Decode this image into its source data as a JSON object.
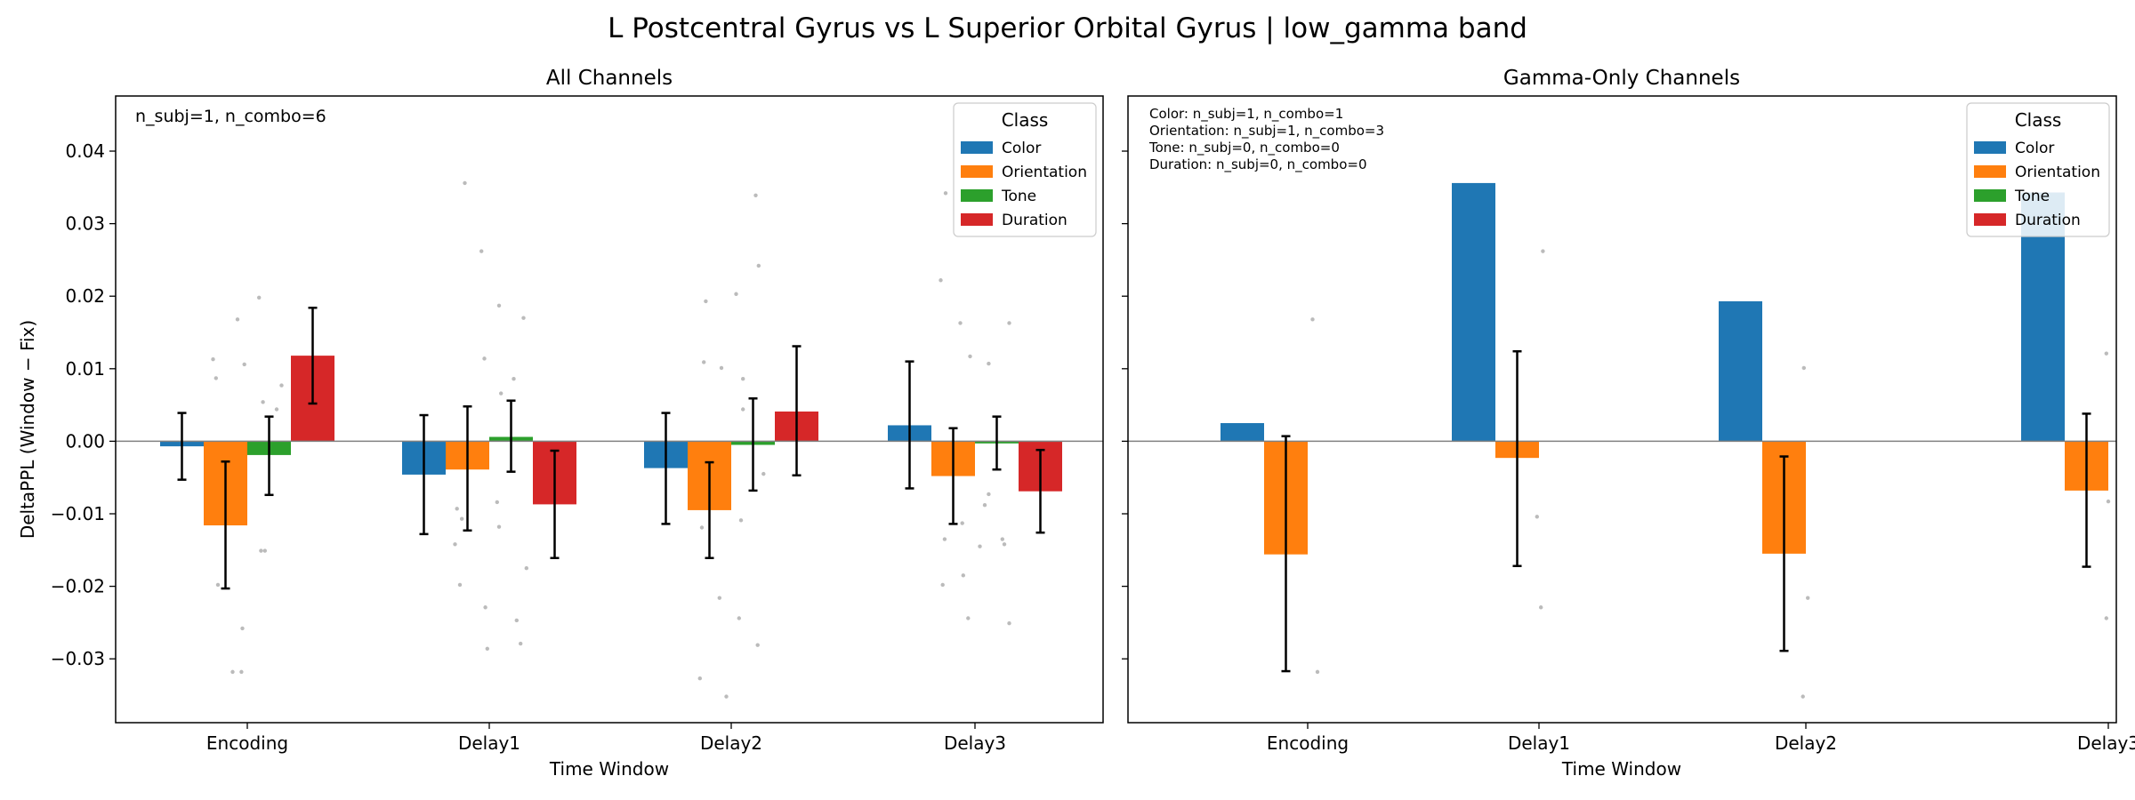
{
  "suptitle": "L Postcentral Gyrus vs L Superior Orbital Gyrus  |  low_gamma band",
  "legend_title": "Class",
  "colors": {
    "Color": "#1f77b4",
    "Orientation": "#ff7f0e",
    "Tone": "#2ca02c",
    "Duration": "#d62728",
    "errorbar": "#000000",
    "points": "#bbbbbb",
    "zeroline": "#808080"
  },
  "chart_data": [
    {
      "type": "bar",
      "title": "All Channels",
      "xlabel": "Time Window",
      "ylabel": "DeltaPPL (Window − Fix)",
      "ylim": [
        -0.0388,
        0.0476
      ],
      "yticks": [
        -0.03,
        -0.02,
        -0.01,
        0.0,
        0.01,
        0.02,
        0.03,
        0.04
      ],
      "ytick_labels": [
        "−0.03",
        "−0.02",
        "−0.01",
        "0.00",
        "0.01",
        "0.02",
        "0.03",
        "0.04"
      ],
      "categories": [
        "Encoding",
        "Delay1",
        "Delay2",
        "Delay3"
      ],
      "legend": [
        "Color",
        "Orientation",
        "Tone",
        "Duration"
      ],
      "legend_position": "upper right",
      "annotation": [
        "n_subj=1, n_combo=6"
      ],
      "series": [
        {
          "name": "Color",
          "values": [
            -0.0007,
            -0.0046,
            -0.0037,
            0.0022
          ],
          "err_low": [
            -0.0053,
            -0.0128,
            -0.0114,
            -0.0065
          ],
          "err_high": [
            0.0039,
            0.0036,
            0.0039,
            0.011
          ]
        },
        {
          "name": "Orientation",
          "values": [
            -0.0116,
            -0.0039,
            -0.0095,
            -0.0048
          ],
          "err_low": [
            -0.0203,
            -0.0123,
            -0.0161,
            -0.0114
          ],
          "err_high": [
            -0.0028,
            0.0048,
            -0.0029,
            0.0018
          ]
        },
        {
          "name": "Tone",
          "values": [
            -0.0019,
            0.0006,
            -0.0005,
            -0.0003
          ],
          "err_low": [
            -0.0074,
            -0.0042,
            -0.0068,
            -0.0039
          ],
          "err_high": [
            0.0034,
            0.0056,
            0.0059,
            0.0034
          ]
        },
        {
          "name": "Duration",
          "values": [
            0.0118,
            -0.0087,
            0.0041,
            -0.0069
          ],
          "err_low": [
            0.0052,
            -0.0161,
            -0.0047,
            -0.0126
          ],
          "err_high": [
            0.0184,
            -0.0013,
            0.0131,
            -0.0012
          ]
        }
      ],
      "points": [
        {
          "cat": 0,
          "off": -0.35,
          "y": 0.0113
        },
        {
          "cat": 0,
          "off": -0.32,
          "y": 0.0087
        },
        {
          "cat": 0,
          "off": -0.3,
          "y": -0.0198
        },
        {
          "cat": 0,
          "off": -0.1,
          "y": 0.0168
        },
        {
          "cat": 0,
          "off": -0.05,
          "y": -0.0258
        },
        {
          "cat": 0,
          "off": -0.03,
          "y": 0.0106
        },
        {
          "cat": 0,
          "off": -0.15,
          "y": -0.0318
        },
        {
          "cat": 0,
          "off": -0.06,
          "y": -0.0318
        },
        {
          "cat": 0,
          "off": 0.12,
          "y": 0.0198
        },
        {
          "cat": 0,
          "off": 0.14,
          "y": -0.0151
        },
        {
          "cat": 0,
          "off": 0.18,
          "y": -0.0151
        },
        {
          "cat": 0,
          "off": 0.16,
          "y": 0.0054
        },
        {
          "cat": 0,
          "off": 0.3,
          "y": 0.0044
        },
        {
          "cat": 0,
          "off": 0.35,
          "y": 0.0077
        },
        {
          "cat": 1,
          "off": -0.35,
          "y": -0.0142
        },
        {
          "cat": 1,
          "off": -0.3,
          "y": -0.0198
        },
        {
          "cat": 1,
          "off": -0.33,
          "y": -0.0093
        },
        {
          "cat": 1,
          "off": -0.28,
          "y": -0.0107
        },
        {
          "cat": 1,
          "off": -0.25,
          "y": 0.0356
        },
        {
          "cat": 1,
          "off": -0.08,
          "y": 0.0262
        },
        {
          "cat": 1,
          "off": -0.05,
          "y": 0.0114
        },
        {
          "cat": 1,
          "off": -0.04,
          "y": -0.0229
        },
        {
          "cat": 1,
          "off": -0.02,
          "y": -0.0286
        },
        {
          "cat": 1,
          "off": 0.1,
          "y": 0.0187
        },
        {
          "cat": 1,
          "off": 0.1,
          "y": -0.0118
        },
        {
          "cat": 1,
          "off": 0.08,
          "y": -0.0084
        },
        {
          "cat": 1,
          "off": 0.12,
          "y": 0.0066
        },
        {
          "cat": 1,
          "off": 0.25,
          "y": 0.0086
        },
        {
          "cat": 1,
          "off": 0.28,
          "y": -0.0247
        },
        {
          "cat": 1,
          "off": 0.32,
          "y": -0.0279
        },
        {
          "cat": 1,
          "off": 0.35,
          "y": 0.017
        },
        {
          "cat": 1,
          "off": 0.38,
          "y": -0.0175
        },
        {
          "cat": 2,
          "off": -0.32,
          "y": -0.0327
        },
        {
          "cat": 2,
          "off": -0.3,
          "y": -0.0119
        },
        {
          "cat": 2,
          "off": -0.28,
          "y": 0.0109
        },
        {
          "cat": 2,
          "off": -0.26,
          "y": 0.0193
        },
        {
          "cat": 2,
          "off": -0.12,
          "y": -0.0216
        },
        {
          "cat": 2,
          "off": -0.1,
          "y": 0.0101
        },
        {
          "cat": 2,
          "off": -0.05,
          "y": -0.0352
        },
        {
          "cat": 2,
          "off": 0.05,
          "y": 0.0203
        },
        {
          "cat": 2,
          "off": 0.08,
          "y": -0.0244
        },
        {
          "cat": 2,
          "off": 0.1,
          "y": -0.0109
        },
        {
          "cat": 2,
          "off": 0.12,
          "y": 0.0086
        },
        {
          "cat": 2,
          "off": 0.12,
          "y": 0.0044
        },
        {
          "cat": 2,
          "off": 0.25,
          "y": 0.0339
        },
        {
          "cat": 2,
          "off": 0.27,
          "y": -0.0281
        },
        {
          "cat": 2,
          "off": 0.28,
          "y": 0.0242
        },
        {
          "cat": 2,
          "off": 0.33,
          "y": -0.0045
        },
        {
          "cat": 3,
          "off": -0.35,
          "y": 0.0222
        },
        {
          "cat": 3,
          "off": -0.33,
          "y": -0.0198
        },
        {
          "cat": 3,
          "off": -0.31,
          "y": -0.0135
        },
        {
          "cat": 3,
          "off": -0.3,
          "y": 0.0342
        },
        {
          "cat": 3,
          "off": -0.15,
          "y": 0.0163
        },
        {
          "cat": 3,
          "off": -0.13,
          "y": -0.0113
        },
        {
          "cat": 3,
          "off": -0.12,
          "y": -0.0185
        },
        {
          "cat": 3,
          "off": -0.07,
          "y": -0.0244
        },
        {
          "cat": 3,
          "off": -0.05,
          "y": 0.0117
        },
        {
          "cat": 3,
          "off": 0.05,
          "y": -0.0145
        },
        {
          "cat": 3,
          "off": 0.1,
          "y": -0.0088
        },
        {
          "cat": 3,
          "off": 0.14,
          "y": 0.0107
        },
        {
          "cat": 3,
          "off": 0.14,
          "y": -0.0073
        },
        {
          "cat": 3,
          "off": 0.28,
          "y": -0.0135
        },
        {
          "cat": 3,
          "off": 0.3,
          "y": -0.0142
        },
        {
          "cat": 3,
          "off": 0.35,
          "y": 0.0163
        },
        {
          "cat": 3,
          "off": 0.35,
          "y": -0.0251
        }
      ]
    },
    {
      "type": "bar",
      "title": "Gamma-Only Channels",
      "xlabel": "Time Window",
      "ylabel": "",
      "ylim": [
        -0.0388,
        0.0476
      ],
      "yticks": [
        -0.03,
        -0.02,
        -0.01,
        0.0,
        0.01,
        0.02,
        0.03,
        0.04
      ],
      "ytick_labels": [],
      "categories": [
        "Encoding",
        "Delay1",
        "Delay2",
        "Delay3"
      ],
      "legend": [
        "Color",
        "Orientation",
        "Tone",
        "Duration"
      ],
      "legend_position": "upper right",
      "annotation": [
        "Color: n_subj=1, n_combo=1",
        "Orientation: n_subj=1, n_combo=3",
        "Tone: n_subj=0, n_combo=0",
        "Duration: n_subj=0, n_combo=0"
      ],
      "series": [
        {
          "name": "Color",
          "values": [
            0.0025,
            0.0356,
            0.0193,
            0.0343
          ],
          "err_low": [
            null,
            null,
            null,
            null
          ],
          "err_high": [
            null,
            null,
            null,
            null
          ]
        },
        {
          "name": "Orientation",
          "values": [
            -0.0156,
            -0.0023,
            -0.0155,
            -0.0068
          ],
          "err_low": [
            -0.0317,
            -0.0172,
            -0.0289,
            -0.0173
          ],
          "err_high": [
            0.0007,
            0.0124,
            -0.0021,
            0.0038
          ]
        },
        {
          "name": "Tone",
          "values": [
            null,
            null,
            null,
            null
          ],
          "err_low": [
            null,
            null,
            null,
            null
          ],
          "err_high": [
            null,
            null,
            null,
            null
          ]
        },
        {
          "name": "Duration",
          "values": [
            null,
            null,
            null,
            null
          ],
          "err_low": [
            null,
            null,
            null,
            null
          ],
          "err_high": [
            null,
            null,
            null,
            null
          ]
        }
      ],
      "points": [
        {
          "cat": 0,
          "off": 0.05,
          "y": 0.0168
        },
        {
          "cat": 0,
          "off": 0.1,
          "y": -0.0318
        },
        {
          "cat": 1,
          "off": -0.02,
          "y": -0.0104
        },
        {
          "cat": 1,
          "off": 0.04,
          "y": 0.0262
        },
        {
          "cat": 1,
          "off": 0.02,
          "y": -0.0229
        },
        {
          "cat": 2,
          "off": -0.02,
          "y": 0.0101
        },
        {
          "cat": 2,
          "off": -0.03,
          "y": -0.0352
        },
        {
          "cat": 2,
          "off": 0.02,
          "y": -0.0216
        },
        {
          "cat": 3,
          "off": -0.02,
          "y": 0.0121
        },
        {
          "cat": 3,
          "off": -0.02,
          "y": -0.0244
        },
        {
          "cat": 3,
          "off": 0.0,
          "y": -0.0083
        }
      ]
    }
  ]
}
